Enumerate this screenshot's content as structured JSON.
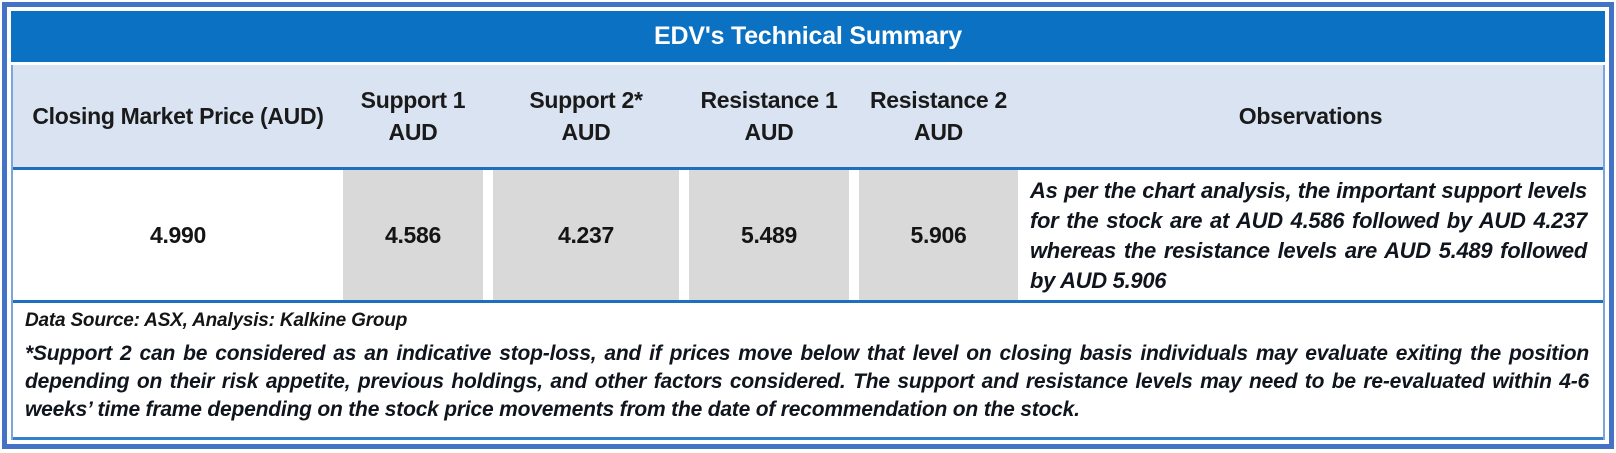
{
  "title": "EDV's Technical Summary",
  "columns": [
    {
      "label": "Closing Market Price (AUD)",
      "sub": ""
    },
    {
      "label": "Support 1",
      "sub": "AUD"
    },
    {
      "label": "Support 2*",
      "sub": "AUD"
    },
    {
      "label": "Resistance 1",
      "sub": "AUD"
    },
    {
      "label": "Resistance 2",
      "sub": "AUD"
    },
    {
      "label": "Observations",
      "sub": ""
    }
  ],
  "row": {
    "closing_market_price": "4.990",
    "support_1": "4.586",
    "support_2": "4.237",
    "resistance_1": "5.489",
    "resistance_2": "5.906",
    "observations": "As per the chart analysis, the important support levels for the stock are at AUD 4.586 followed by AUD 4.237 whereas the resistance levels are AUD 5.489 followed by AUD 5.906"
  },
  "footer": {
    "data_source": "Data Source: ASX, Analysis: Kalkine Group",
    "note": "*Support 2 can be considered as an indicative stop-loss, and if prices move below that level on closing basis individuals may evaluate exiting the position depending on their risk appetite, previous holdings, and other factors considered. The support and resistance levels may need to be re-evaluated within 4-6 weeks’ time frame depending on the stock price movements from the date of recommendation on the stock."
  },
  "colors": {
    "outer_border": "#4472C4",
    "title_bar": "#0B71C2",
    "header_bg": "#DAE3F2",
    "gray_cell": "#D9D9D9",
    "separator": "#1E6FBE",
    "title_text": "#FFFFFF",
    "body_text": "#141414"
  },
  "table_data": {
    "type": "table",
    "title": "EDV's Technical Summary",
    "headers": [
      "Closing Market Price (AUD)",
      "Support 1 AUD",
      "Support 2* AUD",
      "Resistance 1 AUD",
      "Resistance 2 AUD",
      "Observations"
    ],
    "rows": [
      [
        "4.990",
        "4.586",
        "4.237",
        "5.489",
        "5.906",
        "As per the chart analysis, the important support levels for the stock are at AUD 4.586 followed by AUD 4.237 whereas the resistance levels are AUD 5.489 followed by AUD 5.906"
      ]
    ]
  }
}
